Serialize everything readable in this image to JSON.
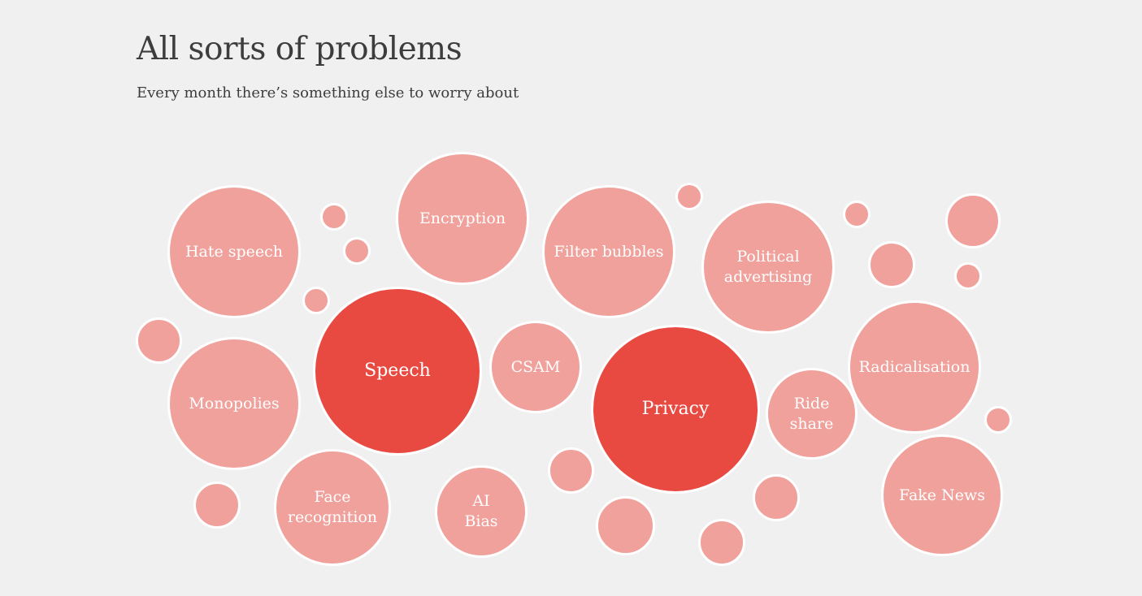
{
  "header": {
    "title": "All sorts of problems",
    "subtitle": "Every month there’s something else to worry about"
  },
  "colors": {
    "background": "#f0f0f0",
    "bubble_minor": "#f0a19c",
    "bubble_major": "#e84a41",
    "bubble_label": "#ffffff",
    "text": "#3d3d3d"
  },
  "bubbles": {
    "hate_speech": "Hate speech",
    "encryption": "Encryption",
    "filter_bubbles": "Filter bubbles",
    "political_advertising": "Political\nadvertising",
    "monopolies": "Monopolies",
    "speech": "Speech",
    "csam": "CSAM",
    "privacy": "Privacy",
    "ride_share": "Ride\nshare",
    "radicalisation": "Radicalisation",
    "face_recognition": "Face\nrecognition",
    "ai_bias": "AI\nBias",
    "fake_news": "Fake News"
  },
  "emphasized_bubbles": [
    "Speech",
    "Privacy"
  ]
}
